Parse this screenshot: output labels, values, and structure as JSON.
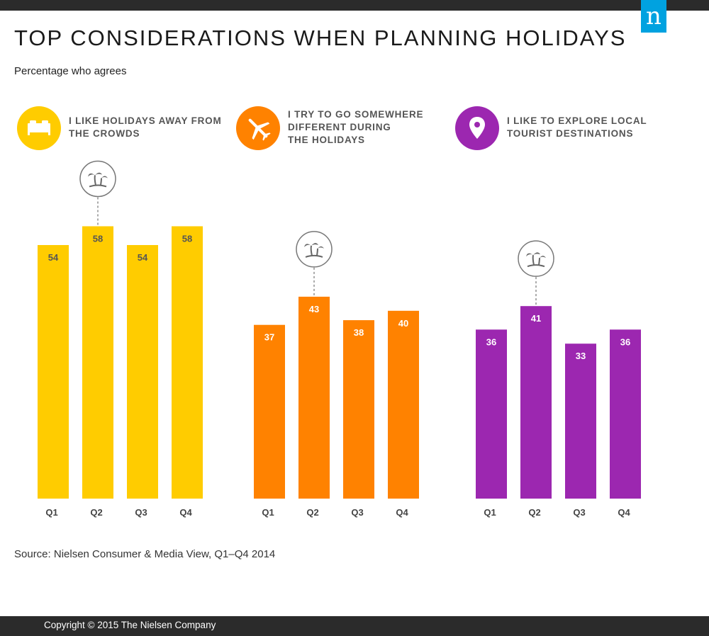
{
  "header": {
    "title": "TOP CONSIDERATIONS WHEN PLANNING HOLIDAYS",
    "subtitle": "Percentage who agrees",
    "logo_letter": "n"
  },
  "panels": [
    {
      "title_lines": [
        "I LIKE HOLIDAYS AWAY FROM",
        "THE CROWDS"
      ],
      "icon": "bed-icon",
      "color": "#ffcc00"
    },
    {
      "title_lines": [
        "I TRY TO GO SOMEWHERE",
        "DIFFERENT DURING",
        "THE HOLIDAYS"
      ],
      "icon": "airplane-icon",
      "color": "#ff8200"
    },
    {
      "title_lines": [
        "I LIKE TO EXPLORE LOCAL",
        "TOURIST DESTINATIONS"
      ],
      "icon": "map-pin-icon",
      "color": "#9c27b0"
    }
  ],
  "chart_data": [
    {
      "type": "bar",
      "categories": [
        "Q1",
        "Q2",
        "Q3",
        "Q4"
      ],
      "values": [
        54,
        58,
        54,
        58
      ],
      "highlight": "Q2",
      "highlight_icon": "palm-tree-icon",
      "ylim": [
        0,
        60
      ]
    },
    {
      "type": "bar",
      "categories": [
        "Q1",
        "Q2",
        "Q3",
        "Q4"
      ],
      "values": [
        37,
        43,
        38,
        40
      ],
      "highlight": "Q2",
      "highlight_icon": "palm-tree-icon",
      "ylim": [
        0,
        60
      ]
    },
    {
      "type": "bar",
      "categories": [
        "Q1",
        "Q2",
        "Q3",
        "Q4"
      ],
      "values": [
        36,
        41,
        33,
        36
      ],
      "highlight": "Q2",
      "highlight_icon": "palm-tree-icon",
      "ylim": [
        0,
        60
      ]
    }
  ],
  "footer": {
    "source": "Source: Nielsen Consumer & Media View, Q1–Q4 2014",
    "copyright": "Copyright © 2015 The Nielsen Company"
  }
}
